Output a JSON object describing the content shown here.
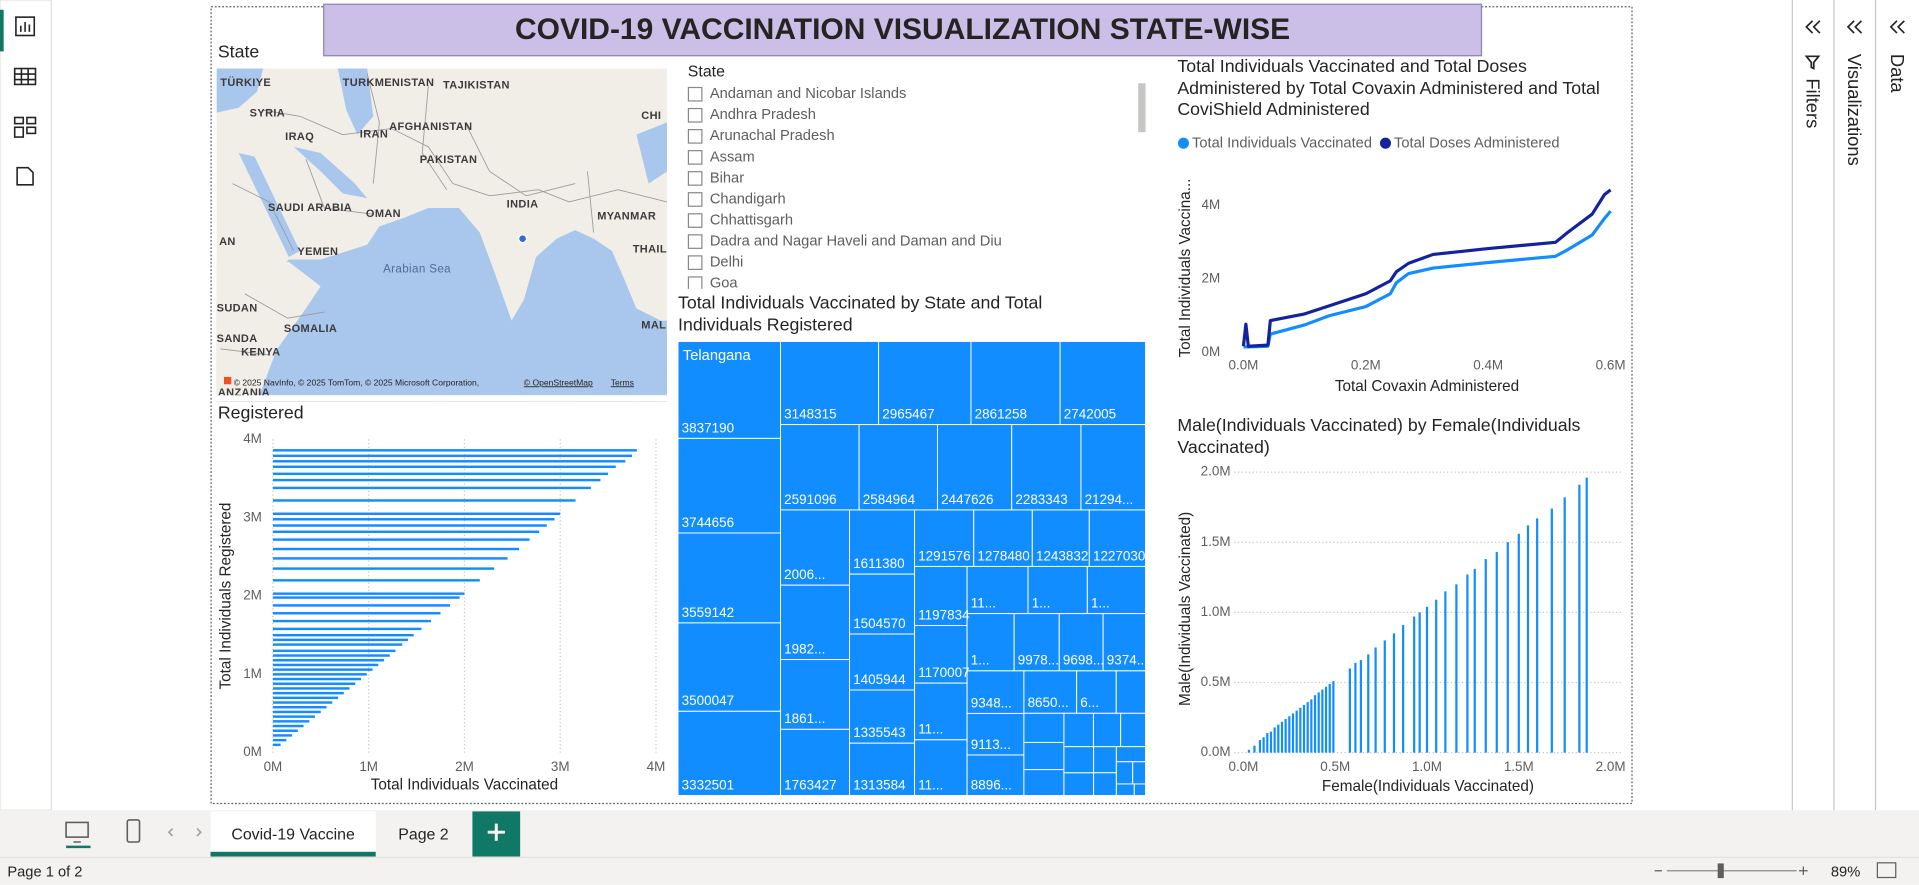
{
  "header": {
    "title": "COVID-19 VACCINATION VISUALIZATION STATE-WISE"
  },
  "map": {
    "title": "State",
    "labels": [
      "TÜRKIYE",
      "TURKMENISTAN",
      "TAJIKISTAN",
      "SYRIA",
      "IRAQ",
      "IRAN",
      "AFGHANISTAN",
      "PAKISTAN",
      "CHI",
      "SAUDI ARABIA",
      "OMAN",
      "INDIA",
      "MYANMAR",
      "AN",
      "YEMEN",
      "Arabian Sea",
      "THAIL",
      "SUDAN",
      "SOMALIA",
      "SANDA",
      "KENYA",
      "MAL",
      "ANZANIA"
    ],
    "attribution": "© 2025 NavInfo, © 2025 TomTom, © 2025 Microsoft Corporation,",
    "osm": "© OpenStreetMap",
    "terms": "Terms"
  },
  "slicer": {
    "title": "State",
    "items": [
      "Andaman and Nicobar Islands",
      "Andhra Pradesh",
      "Arunachal Pradesh",
      "Assam",
      "Bihar",
      "Chandigarh",
      "Chhattisgarh",
      "Dadra and Nagar Haveli and Daman and Diu",
      "Delhi",
      "Goa"
    ]
  },
  "chart_data": [
    {
      "type": "line",
      "title": "Total Individuals Vaccinated and Total Doses Administered by Total Covaxin Administered and Total CoviShield Administered",
      "x_label": "Total Covaxin Administered",
      "y_label": "Total Individuals Vaccina...",
      "x": [
        0,
        4000,
        8000,
        40000,
        44000,
        100000,
        140000,
        200000,
        240000,
        250000,
        270000,
        310000,
        400000,
        510000,
        530000,
        570000,
        590000,
        600000
      ],
      "series": [
        {
          "name": "Total Individuals Vaccinated",
          "color": "#118dff",
          "values": [
            150000,
            150000,
            150000,
            170000,
            500000,
            750000,
            1000000,
            1250000,
            1600000,
            1900000,
            2150000,
            2300000,
            2450000,
            2620000,
            2800000,
            3200000,
            3650000,
            3850000
          ]
        },
        {
          "name": "Total Doses Administered",
          "color": "#12239e",
          "values": [
            170000,
            770000,
            170000,
            200000,
            870000,
            1050000,
            1270000,
            1600000,
            1950000,
            2200000,
            2430000,
            2670000,
            2830000,
            3000000,
            3270000,
            3770000,
            4300000,
            4430000
          ]
        }
      ],
      "xlim": [
        -30000,
        630000
      ],
      "ylim": [
        0,
        4600000
      ],
      "xticks": [
        {
          "value": 0,
          "label": "0.0M"
        },
        {
          "value": 200000,
          "label": "0.2M"
        },
        {
          "value": 400000,
          "label": "0.4M"
        },
        {
          "value": 600000,
          "label": "0.6M"
        }
      ],
      "yticks": [
        {
          "value": 0,
          "label": "0M"
        },
        {
          "value": 2000000,
          "label": "2M"
        },
        {
          "value": 4000000,
          "label": "4M"
        }
      ],
      "grid": "none",
      "legend": "top-left"
    },
    {
      "type": "bar",
      "orientation": "horizontal",
      "title": "Registered",
      "x_label": "Total Individuals Vaccinated",
      "y_label": "Total Individuals Registered",
      "color": "#118dff",
      "y": [
        3860000,
        3790000,
        3720000,
        3650000,
        3560000,
        3480000,
        3380000,
        3220000,
        3050000,
        2980000,
        2900000,
        2820000,
        2720000,
        2600000,
        2480000,
        2350000,
        2200000,
        2030000,
        1980000,
        1880000,
        1780000,
        1680000,
        1580000,
        1500000,
        1440000,
        1380000,
        1300000,
        1240000,
        1180000,
        1120000,
        1060000,
        1000000,
        940000,
        880000,
        820000,
        760000,
        700000,
        640000,
        580000,
        520000,
        460000,
        400000,
        340000,
        280000,
        220000,
        160000,
        100000
      ],
      "values": [
        3800000,
        3750000,
        3680000,
        3580000,
        3500000,
        3420000,
        3320000,
        3160000,
        3000000,
        2940000,
        2860000,
        2780000,
        2680000,
        2570000,
        2450000,
        2310000,
        2160000,
        2000000,
        1950000,
        1850000,
        1750000,
        1650000,
        1550000,
        1470000,
        1410000,
        1350000,
        1280000,
        1220000,
        1160000,
        1100000,
        1040000,
        980000,
        920000,
        860000,
        800000,
        740000,
        680000,
        620000,
        560000,
        500000,
        440000,
        380000,
        320000,
        260000,
        200000,
        140000,
        80000
      ],
      "xlim": [
        0,
        4000000
      ],
      "ylim": [
        0,
        4000000
      ],
      "xticks": [
        {
          "value": 0,
          "label": "0M"
        },
        {
          "value": 1000000,
          "label": "1M"
        },
        {
          "value": 2000000,
          "label": "2M"
        },
        {
          "value": 3000000,
          "label": "3M"
        },
        {
          "value": 4000000,
          "label": "4M"
        }
      ],
      "yticks": [
        {
          "value": 0,
          "label": "0M"
        },
        {
          "value": 1000000,
          "label": "1M"
        },
        {
          "value": 2000000,
          "label": "2M"
        },
        {
          "value": 3000000,
          "label": "3M"
        },
        {
          "value": 4000000,
          "label": "4M"
        }
      ],
      "grid": "x"
    },
    {
      "type": "treemap",
      "title": "Total Individuals Vaccinated by State and Total Individuals Registered",
      "color": "#118dff",
      "categories": [
        "Telangana",
        null,
        null,
        null,
        null,
        null,
        null,
        null,
        null,
        null,
        null,
        null,
        null,
        null,
        null,
        null,
        null,
        null,
        null,
        null,
        null,
        null,
        null,
        null,
        null,
        null,
        null,
        null,
        null,
        null,
        null,
        null,
        null,
        null,
        null,
        null,
        null,
        null,
        null,
        null,
        null,
        null,
        null,
        null,
        null,
        null,
        null,
        null,
        null,
        null,
        null,
        null,
        null,
        null,
        null,
        null,
        null,
        null,
        null
      ],
      "values": [
        3837190,
        3744656,
        3559142,
        3500047,
        3332501,
        3148315,
        2965467,
        2861258,
        2742005,
        2591096,
        2584964,
        2447626,
        2283343,
        2129400,
        2006000,
        1982000,
        1861000,
        1763427,
        1611380,
        1504570,
        1405944,
        1335543,
        1313584,
        1291576,
        1278480,
        1243832,
        1227030,
        1197834,
        1170007,
        1150000,
        1130000,
        1110000,
        1080000,
        1060000,
        1040000,
        997800,
        969800,
        937400,
        934800,
        911300,
        889600,
        865000,
        650000,
        480000,
        450000,
        420000,
        400000,
        380000,
        350000,
        320000,
        300000,
        260000,
        230000,
        200000,
        170000,
        140000,
        110000,
        80000,
        50000
      ],
      "value_labels": [
        null,
        null,
        null,
        null,
        null,
        null,
        null,
        null,
        null,
        null,
        null,
        null,
        null,
        "21294...",
        "2006...",
        "1982...",
        "1861...",
        null,
        null,
        null,
        null,
        null,
        null,
        null,
        null,
        null,
        null,
        null,
        null,
        "11...",
        "11...",
        "11...",
        "1...",
        "1...",
        "1...",
        "9978...",
        "9698...",
        "9374...",
        "9348...",
        "9113...",
        "8896...",
        "8650...",
        "6...",
        null,
        null,
        null,
        null,
        null,
        null,
        null,
        null,
        null,
        null,
        null,
        null,
        null,
        null,
        null,
        null
      ]
    },
    {
      "type": "bar",
      "orientation": "vertical",
      "title": "Male(Individuals Vaccinated) by Female(Individuals Vaccinated)",
      "x_label": "Female(Individuals Vaccinated)",
      "y_label": "Male(Individuals Vaccinated)",
      "color": "#118dff",
      "x": [
        30000,
        60000,
        90000,
        110000,
        130000,
        150000,
        170000,
        190000,
        210000,
        230000,
        250000,
        270000,
        290000,
        310000,
        330000,
        350000,
        370000,
        390000,
        410000,
        430000,
        450000,
        470000,
        490000,
        580000,
        610000,
        640000,
        680000,
        720000,
        770000,
        820000,
        870000,
        930000,
        960000,
        1000000,
        1050000,
        1100000,
        1160000,
        1220000,
        1260000,
        1320000,
        1380000,
        1440000,
        1500000,
        1550000,
        1600000,
        1680000,
        1750000,
        1830000,
        1870000
      ],
      "values": [
        20000,
        50000,
        90000,
        110000,
        140000,
        150000,
        180000,
        200000,
        220000,
        240000,
        260000,
        280000,
        300000,
        320000,
        340000,
        360000,
        380000,
        410000,
        430000,
        450000,
        470000,
        490000,
        510000,
        600000,
        640000,
        660000,
        700000,
        750000,
        800000,
        850000,
        910000,
        970000,
        1000000,
        1040000,
        1090000,
        1150000,
        1200000,
        1270000,
        1310000,
        1380000,
        1430000,
        1500000,
        1560000,
        1620000,
        1670000,
        1740000,
        1820000,
        1910000,
        1960000
      ],
      "xlim": [
        -50000,
        2060000
      ],
      "ylim": [
        0,
        2050000
      ],
      "xticks": [
        {
          "value": 0,
          "label": "0.0M"
        },
        {
          "value": 500000,
          "label": "0.5M"
        },
        {
          "value": 1000000,
          "label": "1.0M"
        },
        {
          "value": 1500000,
          "label": "1.5M"
        },
        {
          "value": 2000000,
          "label": "2.0M"
        }
      ],
      "yticks": [
        {
          "value": 0,
          "label": "0.0M"
        },
        {
          "value": 500000,
          "label": "0.5M"
        },
        {
          "value": 1000000,
          "label": "1.0M"
        },
        {
          "value": 1500000,
          "label": "1.5M"
        },
        {
          "value": 2000000,
          "label": "2.0M"
        }
      ],
      "grid": "y"
    }
  ],
  "panes": {
    "filters": "Filters",
    "visualizations": "Visualizations",
    "data": "Data"
  },
  "tabs": [
    "Covid-19 Vaccine",
    "Page 2"
  ],
  "status": {
    "page": "Page 1 of 2",
    "zoom": "89%"
  }
}
